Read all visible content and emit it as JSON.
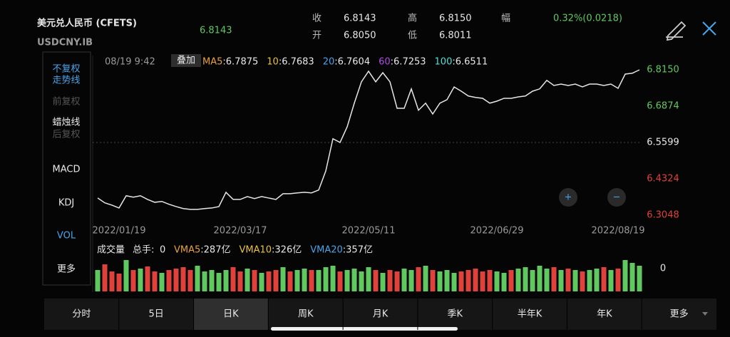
{
  "header": {
    "title": "美元兑人民币 (CFETS)",
    "code": "USDCNY.IB",
    "price": "6.8143",
    "quotes": [
      [
        "收",
        "6.8143"
      ],
      [
        "高",
        "6.8150"
      ],
      [
        "开",
        "6.8050"
      ],
      [
        "低",
        "6.8011"
      ]
    ],
    "change_label": "幅",
    "change": "0.32%(0.0218)"
  },
  "sidebar": {
    "items": [
      {
        "label": "不复权",
        "color": "#4aa3e8"
      },
      {
        "label": "走势线",
        "color": "#4aa3e8"
      },
      {
        "label": "前复权",
        "color": "#555555"
      },
      {
        "label": "蜡烛线",
        "color": "#e8e8e8"
      },
      {
        "label": "后复权",
        "color": "#555555"
      },
      {
        "label": "MACD",
        "color": "#e8e8e8"
      },
      {
        "label": "KDJ",
        "color": "#e8e8e8"
      },
      {
        "label": "VOL",
        "color": "#4aa3e8"
      },
      {
        "label": "更多",
        "color": "#e8e8e8"
      }
    ]
  },
  "chart": {
    "type": "line",
    "cursor_time": "08/19 9:42",
    "overlay_button": "叠加",
    "mas": [
      {
        "key": "MA5",
        "value": ":6.7875",
        "color": "#e8a33c"
      },
      {
        "key": "10",
        "value": ":6.7683",
        "color": "#e8c23c"
      },
      {
        "key": "20",
        "value": ":6.7604",
        "color": "#4aa3e8"
      },
      {
        "key": "60",
        "value": ":6.7253",
        "color": "#b04ae8"
      },
      {
        "key": "100",
        "value": ":6.6511",
        "color": "#4ae0d8"
      }
    ],
    "color": "#e6e6e6",
    "categories": [
      null,
      null,
      null,
      "2022/01/19",
      null,
      null,
      null,
      null,
      null,
      null,
      null,
      null,
      null,
      null,
      null,
      null,
      null,
      null,
      null,
      null,
      "2022/03/17",
      null,
      null,
      null,
      null,
      null,
      null,
      null,
      null,
      null,
      null,
      null,
      null,
      null,
      null,
      null,
      null,
      null,
      "2022/05/11",
      null,
      null,
      null,
      null,
      null,
      null,
      null,
      null,
      null,
      null,
      null,
      null,
      null,
      null,
      null,
      null,
      null,
      "2022/06/29",
      null,
      null,
      null,
      null,
      null,
      null,
      null,
      null,
      null,
      null,
      null,
      null,
      null,
      null,
      null,
      null,
      "2022/08/19",
      null,
      null,
      null
    ],
    "values": [
      6.365,
      6.348,
      6.34,
      6.33,
      6.373,
      6.368,
      6.373,
      6.36,
      6.35,
      6.353,
      6.343,
      6.335,
      6.328,
      6.325,
      6.325,
      6.328,
      6.33,
      6.335,
      6.385,
      6.36,
      6.36,
      6.37,
      6.363,
      6.37,
      6.365,
      6.36,
      6.38,
      6.38,
      6.383,
      6.385,
      6.383,
      6.393,
      6.46,
      6.573,
      6.56,
      6.615,
      6.698,
      6.773,
      6.81,
      6.773,
      6.805,
      6.773,
      6.68,
      6.68,
      6.748,
      6.673,
      6.698,
      6.66,
      6.698,
      6.71,
      6.755,
      6.74,
      6.723,
      6.718,
      6.715,
      6.698,
      6.705,
      6.715,
      6.715,
      6.72,
      6.723,
      6.74,
      6.748,
      6.778,
      6.76,
      6.765,
      6.76,
      6.765,
      6.755,
      6.765,
      6.765,
      6.76,
      6.765,
      6.75,
      6.8,
      6.803,
      6.815
    ],
    "ylim": [
      6.3048,
      6.815
    ],
    "yticks": [
      {
        "value": 6.815,
        "label": "6.8150"
      },
      6.6874,
      6.5599,
      6.4324,
      6.3048
    ],
    "ytick_colors": [
      "#5fc95f",
      "#5fc95f",
      "#e8e8e8",
      "#e0413a",
      "#e0413a"
    ],
    "zoom_in": "+",
    "zoom_out": "−"
  },
  "volume": {
    "type": "bar",
    "label": "成交量",
    "total_label": "总手:",
    "total": "0",
    "mas": [
      {
        "key": "VMA5",
        "value": ":287亿",
        "color": "#e8a33c"
      },
      {
        "key": "VMA10",
        "value": ":326亿",
        "color": "#e8c23c"
      },
      {
        "key": "VMA20",
        "value": ":357亿",
        "color": "#4aa3e8"
      }
    ],
    "axis_label": "0",
    "ylim": [
      0,
      50
    ],
    "values": [
      30,
      38,
      28,
      25,
      44,
      30,
      32,
      35,
      28,
      26,
      30,
      32,
      34,
      30,
      36,
      28,
      30,
      26,
      30,
      34,
      28,
      32,
      30,
      26,
      28,
      30,
      34,
      28,
      30,
      32,
      30,
      30,
      34,
      36,
      28,
      30,
      32,
      28,
      34,
      30,
      26,
      30,
      28,
      32,
      30,
      34,
      36,
      30,
      28,
      30,
      26,
      28,
      30,
      32,
      28,
      30,
      28,
      26,
      30,
      32,
      34,
      30,
      36,
      32,
      34,
      30,
      32,
      30,
      28,
      30,
      32,
      34,
      30,
      32,
      44,
      40,
      36
    ],
    "rising": [
      true,
      false,
      false,
      false,
      true,
      false,
      true,
      false,
      false,
      true,
      false,
      false,
      false,
      false,
      true,
      true,
      true,
      true,
      true,
      false,
      false,
      true,
      false,
      true,
      false,
      false,
      true,
      false,
      true,
      true,
      false,
      true,
      true,
      true,
      false,
      true,
      true,
      true,
      true,
      false,
      true,
      false,
      false,
      true,
      true,
      false,
      true,
      false,
      true,
      true,
      true,
      false,
      false,
      false,
      false,
      false,
      true,
      true,
      false,
      true,
      true,
      true,
      true,
      true,
      false,
      true,
      false,
      true,
      false,
      true,
      true,
      false,
      true,
      false,
      true,
      true,
      true
    ],
    "up_color": "#5fc95f",
    "down_color": "#e0413a"
  },
  "tabs": {
    "items": [
      "分时",
      "5日",
      "日K",
      "周K",
      "月K",
      "季K",
      "半年K",
      "年K",
      "更多"
    ],
    "selected": 2
  }
}
